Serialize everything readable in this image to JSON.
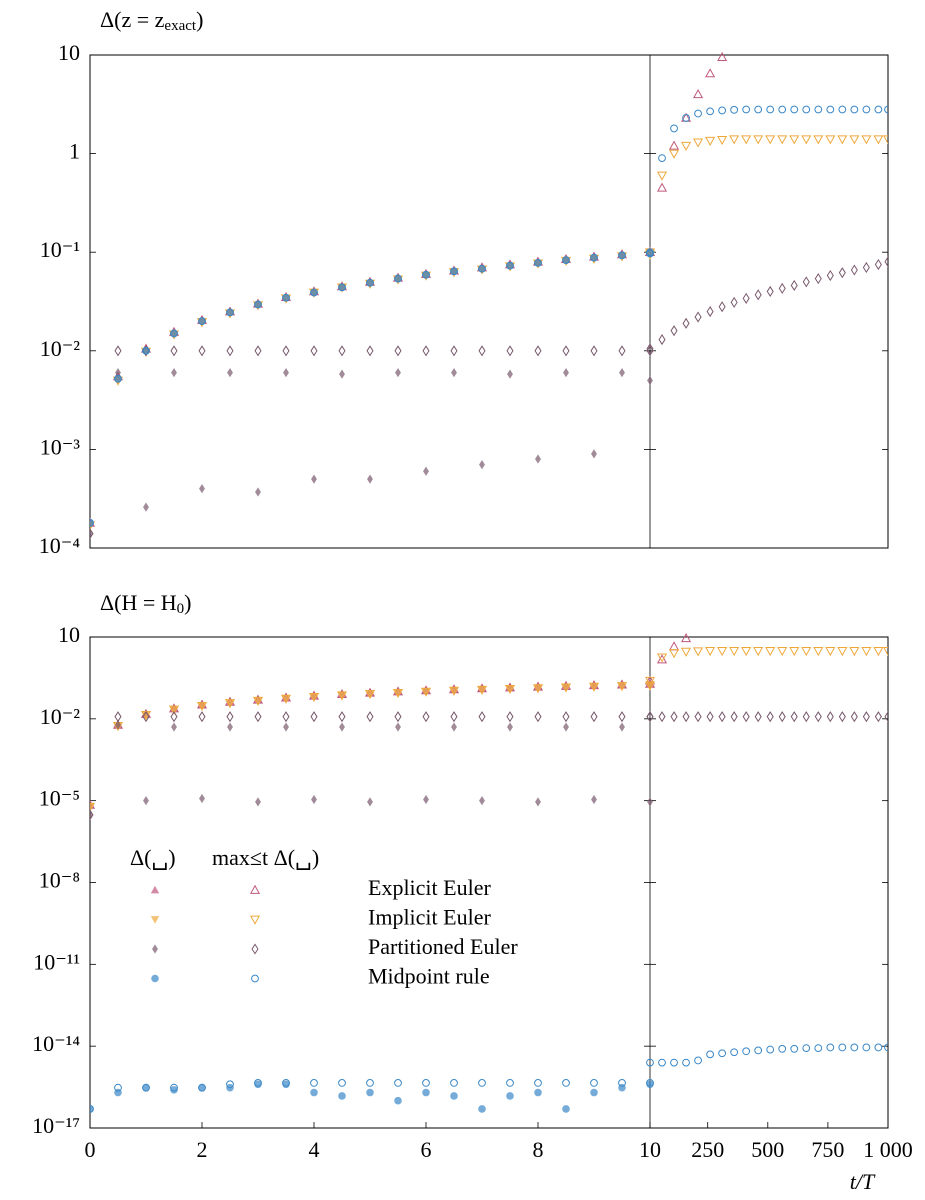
{
  "chart_data": [
    {
      "type": "scatter",
      "log_y": true,
      "title": {
        "main": "Δ(z = z",
        "sub": "exact",
        "end": ")"
      },
      "ylim": [
        0.0001,
        10
      ],
      "yticks": [
        10,
        1,
        {
          "value": 0.1,
          "label": "10⁻¹"
        },
        {
          "value": 0.01,
          "label": "10⁻²"
        },
        {
          "value": 0.001,
          "label": "10⁻³"
        },
        {
          "value": 0.0001,
          "label": "10⁻⁴"
        }
      ],
      "panels": [
        {
          "xlim": [
            0,
            10
          ],
          "x": [
            0,
            0.5,
            1,
            1.5,
            2,
            2.5,
            3,
            3.5,
            4,
            4.5,
            5,
            5.5,
            6,
            6.5,
            7,
            7.5,
            8,
            8.5,
            9,
            9.5,
            10
          ]
        },
        {
          "xlim": [
            10,
            1000
          ],
          "x": [
            10,
            60,
            110,
            160,
            210,
            260,
            310,
            360,
            410,
            460,
            510,
            560,
            610,
            660,
            710,
            760,
            810,
            860,
            910,
            960,
            1000
          ]
        }
      ],
      "series": [
        {
          "color": "#c0587e",
          "marker": "triangle-up",
          "values": [
            0.00018,
            0.0055,
            0.0105,
            0.0155,
            0.0205,
            0.025,
            0.03,
            0.035,
            0.04,
            0.045,
            0.05,
            0.055,
            0.06,
            0.065,
            0.07,
            0.075,
            0.08,
            0.085,
            0.09,
            0.095,
            0.1
          ],
          "max_values": [
            0.00018,
            0.0055,
            0.0105,
            0.0155,
            0.0205,
            0.025,
            0.03,
            0.035,
            0.04,
            0.045,
            0.05,
            0.055,
            0.06,
            0.065,
            0.07,
            0.075,
            0.08,
            0.085,
            0.09,
            0.095,
            0.1
          ],
          "right_max_values": [
            0.1,
            0.45,
            1.2,
            2.3,
            4,
            6.5,
            9.5,
            null,
            null,
            null,
            null,
            null,
            null,
            null,
            null,
            null,
            null,
            null,
            null,
            null,
            null
          ]
        },
        {
          "color": "#eea83a",
          "marker": "triangle-down",
          "values": [
            0.00017,
            0.005,
            0.0098,
            0.0147,
            0.0196,
            0.024,
            0.029,
            0.034,
            0.039,
            0.044,
            0.048,
            0.053,
            0.058,
            0.063,
            0.067,
            0.072,
            0.077,
            0.082,
            0.086,
            0.091,
            0.095
          ],
          "max_values": [
            0.00017,
            0.005,
            0.0098,
            0.0147,
            0.0196,
            0.024,
            0.029,
            0.034,
            0.039,
            0.044,
            0.048,
            0.053,
            0.058,
            0.063,
            0.067,
            0.072,
            0.077,
            0.082,
            0.086,
            0.091,
            0.095
          ],
          "right_max_values": [
            0.1,
            0.6,
            1.0,
            1.2,
            1.3,
            1.35,
            1.38,
            1.4,
            1.4,
            1.4,
            1.4,
            1.4,
            1.4,
            1.4,
            1.4,
            1.4,
            1.4,
            1.4,
            1.4,
            1.4,
            1.4
          ]
        },
        {
          "color": "#7a5a6e",
          "marker": "diamond",
          "values": [
            0.00014,
            0.006,
            0.00026,
            0.006,
            0.0004,
            0.006,
            0.00037,
            0.006,
            0.0005,
            0.0058,
            0.0005,
            0.006,
            0.0006,
            0.006,
            0.0007,
            0.0058,
            0.0008,
            0.006,
            0.0009,
            0.006,
            0.005
          ],
          "max_values": [
            0.00014,
            0.01,
            0.01,
            0.01,
            0.01,
            0.01,
            0.01,
            0.01,
            0.01,
            0.01,
            0.01,
            0.01,
            0.01,
            0.01,
            0.01,
            0.01,
            0.01,
            0.01,
            0.01,
            0.01,
            0.01
          ],
          "right_max_values": [
            0.0105,
            0.013,
            0.016,
            0.019,
            0.022,
            0.025,
            0.028,
            0.031,
            0.034,
            0.037,
            0.04,
            0.043,
            0.046,
            0.05,
            0.054,
            0.058,
            0.062,
            0.066,
            0.07,
            0.075,
            0.08
          ]
        },
        {
          "color": "#3a88c8",
          "marker": "circle",
          "values": [
            0.00018,
            0.0052,
            0.01,
            0.015,
            0.02,
            0.0245,
            0.0295,
            0.0345,
            0.039,
            0.044,
            0.049,
            0.054,
            0.059,
            0.064,
            0.068,
            0.073,
            0.078,
            0.083,
            0.088,
            0.093,
            0.097
          ],
          "max_values": [
            0.00018,
            0.0052,
            0.01,
            0.015,
            0.02,
            0.0245,
            0.0295,
            0.0345,
            0.039,
            0.044,
            0.049,
            0.054,
            0.059,
            0.064,
            0.068,
            0.073,
            0.078,
            0.083,
            0.088,
            0.093,
            0.097
          ],
          "right_max_values": [
            0.1,
            0.9,
            1.8,
            2.3,
            2.55,
            2.68,
            2.74,
            2.78,
            2.8,
            2.8,
            2.8,
            2.8,
            2.8,
            2.8,
            2.8,
            2.8,
            2.8,
            2.8,
            2.8,
            2.8,
            2.8
          ]
        }
      ]
    },
    {
      "type": "scatter",
      "log_y": true,
      "title": {
        "main": "Δ(H = H",
        "sub": "0",
        "end": ")"
      },
      "ylim": [
        1e-17,
        10
      ],
      "yticks": [
        10,
        {
          "value": 0.01,
          "label": "10⁻²"
        },
        {
          "value": 1e-05,
          "label": "10⁻⁵"
        },
        {
          "value": 1e-08,
          "label": "10⁻⁸"
        },
        {
          "value": 1e-11,
          "label": "10⁻¹¹"
        },
        {
          "value": 1e-14,
          "label": "10⁻¹⁴"
        },
        {
          "value": 1e-17,
          "label": "10⁻¹⁷"
        }
      ],
      "x_label": "t/T",
      "panels": [
        {
          "xlim": [
            0,
            10
          ],
          "xticks": [
            0,
            2,
            4,
            6,
            8,
            10
          ],
          "x": [
            0,
            0.5,
            1,
            1.5,
            2,
            2.5,
            3,
            3.5,
            4,
            4.5,
            5,
            5.5,
            6,
            6.5,
            7,
            7.5,
            8,
            8.5,
            9,
            9.5,
            10
          ]
        },
        {
          "xlim": [
            10,
            1000
          ],
          "xticks": [
            250,
            500,
            750,
            {
              "value": 1000,
              "label": "1 000"
            }
          ],
          "x": [
            10,
            60,
            110,
            160,
            210,
            260,
            310,
            360,
            410,
            460,
            510,
            560,
            610,
            660,
            710,
            760,
            810,
            860,
            910,
            960,
            1000
          ]
        }
      ],
      "legend": {
        "headers": [
          "Δ(␣)",
          "max≤t Δ(␣)"
        ]
      },
      "series": [
        {
          "name": "Explicit Euler",
          "color": "#c0587e",
          "marker": "triangle-up",
          "values": [
            7e-06,
            0.006,
            0.015,
            0.024,
            0.033,
            0.042,
            0.05,
            0.06,
            0.07,
            0.08,
            0.09,
            0.1,
            0.11,
            0.12,
            0.13,
            0.14,
            0.15,
            0.16,
            0.17,
            0.18,
            0.19
          ],
          "max_values": [
            7e-06,
            0.006,
            0.015,
            0.024,
            0.033,
            0.042,
            0.05,
            0.06,
            0.07,
            0.08,
            0.09,
            0.1,
            0.11,
            0.12,
            0.13,
            0.14,
            0.15,
            0.16,
            0.17,
            0.18,
            0.19
          ],
          "right_max_values": [
            0.25,
            1.5,
            4.5,
            9,
            null,
            null,
            null,
            null,
            null,
            null,
            null,
            null,
            null,
            null,
            null,
            null,
            null,
            null,
            null,
            null,
            null
          ]
        },
        {
          "name": "Implicit Euler",
          "color": "#eea83a",
          "marker": "triangle-down",
          "values": [
            6e-06,
            0.0055,
            0.014,
            0.022,
            0.03,
            0.038,
            0.046,
            0.055,
            0.064,
            0.073,
            0.082,
            0.09,
            0.1,
            0.108,
            0.117,
            0.126,
            0.134,
            0.143,
            0.152,
            0.16,
            0.17
          ],
          "max_values": [
            6e-06,
            0.0055,
            0.014,
            0.022,
            0.03,
            0.038,
            0.046,
            0.055,
            0.064,
            0.073,
            0.082,
            0.09,
            0.1,
            0.108,
            0.117,
            0.126,
            0.134,
            0.143,
            0.152,
            0.16,
            0.17
          ],
          "right_max_values": [
            0.25,
            1.8,
            2.6,
            2.9,
            3.0,
            3.1,
            3.1,
            3.1,
            3.1,
            3.1,
            3.1,
            3.1,
            3.1,
            3.1,
            3.1,
            3.1,
            3.1,
            3.1,
            3.1,
            3.1,
            3.1
          ]
        },
        {
          "name": "Partitioned Euler",
          "color": "#7a5a6e",
          "marker": "diamond",
          "values": [
            3e-06,
            0.006,
            1e-05,
            0.005,
            1.2e-05,
            0.005,
            9e-06,
            0.005,
            1.1e-05,
            0.005,
            9e-06,
            0.005,
            1.1e-05,
            0.005,
            1e-05,
            0.005,
            9e-06,
            0.005,
            1.1e-05,
            0.005,
            9e-06
          ],
          "max_values": [
            3e-06,
            0.012,
            0.012,
            0.012,
            0.012,
            0.012,
            0.012,
            0.012,
            0.012,
            0.012,
            0.012,
            0.012,
            0.012,
            0.012,
            0.012,
            0.012,
            0.012,
            0.012,
            0.012,
            0.012,
            0.012
          ],
          "right_max_values": [
            0.012,
            0.012,
            0.012,
            0.012,
            0.012,
            0.012,
            0.012,
            0.012,
            0.012,
            0.012,
            0.012,
            0.012,
            0.012,
            0.012,
            0.012,
            0.012,
            0.012,
            0.012,
            0.012,
            0.012,
            0.012
          ]
        },
        {
          "name": "Midpoint rule",
          "color": "#3a88c8",
          "marker": "circle",
          "values": [
            5e-17,
            2e-16,
            3e-16,
            2.5e-16,
            3e-16,
            3e-16,
            4e-16,
            4e-16,
            2e-16,
            1.5e-16,
            2e-16,
            1e-16,
            2e-16,
            1.5e-16,
            5e-17,
            1.5e-16,
            2e-16,
            5e-17,
            2e-16,
            3e-16,
            4e-16
          ],
          "max_values": [
            5e-17,
            3e-16,
            3e-16,
            3e-16,
            3e-16,
            4e-16,
            4.5e-16,
            4.5e-16,
            4.5e-16,
            4.5e-16,
            4.5e-16,
            4.5e-16,
            4.5e-16,
            4.5e-16,
            4.5e-16,
            4.5e-16,
            4.5e-16,
            4.5e-16,
            4.5e-16,
            4.5e-16,
            4.5e-16
          ],
          "right_max_values": [
            2.5e-15,
            2.5e-15,
            2.5e-15,
            2.5e-15,
            3e-15,
            5e-15,
            5.5e-15,
            6e-15,
            6.5e-15,
            7e-15,
            7.5e-15,
            8e-15,
            8e-15,
            8.5e-15,
            8.5e-15,
            9e-15,
            9e-15,
            9e-15,
            9e-15,
            9e-15,
            9e-15
          ]
        }
      ]
    }
  ]
}
